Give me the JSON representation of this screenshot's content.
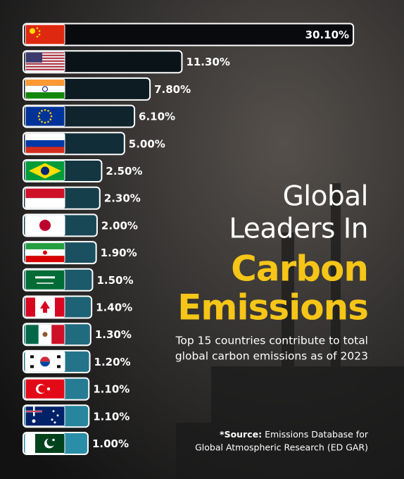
{
  "chart_data": {
    "type": "bar",
    "orientation": "horizontal",
    "categories": [
      null,
      null,
      null,
      null,
      null,
      null,
      null,
      null,
      null,
      null,
      null,
      null,
      null,
      null,
      null,
      null
    ],
    "values": [
      30.1,
      11.3,
      7.8,
      6.1,
      5.0,
      2.5,
      2.3,
      2.0,
      1.9,
      1.5,
      1.4,
      1.3,
      1.2,
      1.1,
      1.1,
      1.0
    ],
    "value_labels": [
      "30.10%",
      "11.30%",
      "7.80%",
      "6.10%",
      "5.00%",
      "2.50%",
      "2.30%",
      "2.00%",
      "1.90%",
      "1.50%",
      "1.40%",
      "1.30%",
      "1.20%",
      "1.10%",
      "1.10%",
      "1.00%"
    ],
    "title_lines": [
      "Global",
      "Leaders In"
    ],
    "highlight_lines": [
      "Carbon",
      "Emissions"
    ],
    "highlight_color": "#f5c518",
    "subtitle_lines": [
      "Top 15 countries contribute to total",
      "global carbon emissions as of 2023"
    ],
    "source": {
      "label": "*Source:",
      "lines": [
        "Emissions Database for",
        "Global Atmospheric Research (ED GAR)"
      ]
    }
  }
}
